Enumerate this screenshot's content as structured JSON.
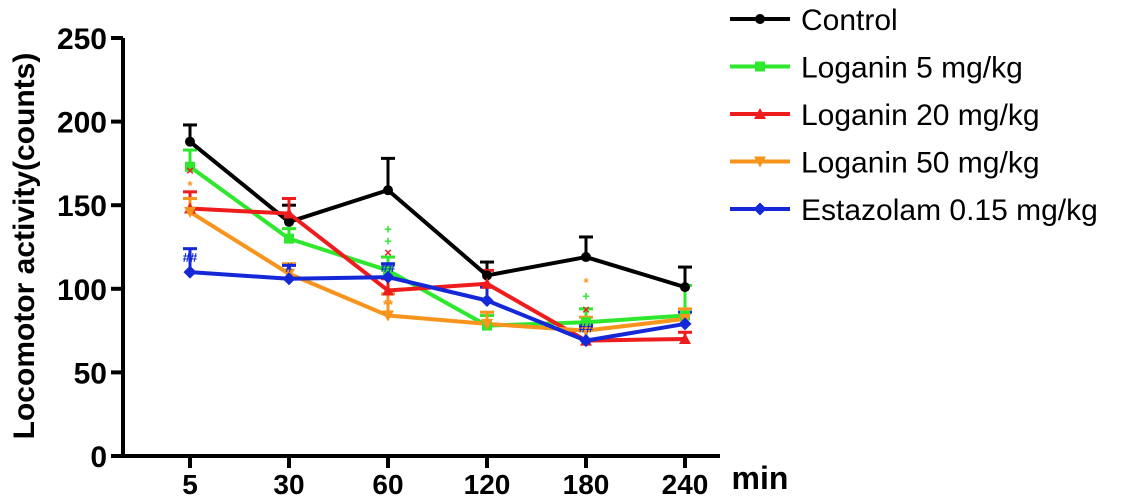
{
  "chart_data": {
    "type": "line",
    "title": "",
    "ylabel": "Locomotor activity(counts)",
    "xlabel": "min",
    "categories": [
      "5",
      "30",
      "60",
      "120",
      "180",
      "240"
    ],
    "yticks": [
      "0",
      "50",
      "100",
      "150",
      "200",
      "250"
    ],
    "ylim": [
      0,
      250
    ],
    "legend_position": "top-right",
    "series": [
      {
        "name": "Control",
        "color": "#000000",
        "marker": "circle",
        "values": [
          188,
          140,
          159,
          108,
          119,
          101
        ],
        "errors": [
          10,
          10,
          19,
          8,
          12,
          12
        ]
      },
      {
        "name": "Loganin 5 mg/kg",
        "color": "#2EE82E",
        "marker": "square",
        "values": [
          173,
          130,
          111,
          78,
          80,
          84
        ],
        "errors": [
          10,
          6,
          8,
          6,
          8,
          18
        ]
      },
      {
        "name": "Loganin 20 mg/kg",
        "color": "#EE1C1C",
        "marker": "triangle-up",
        "values": [
          148,
          145,
          99,
          103,
          69,
          70
        ],
        "errors": [
          10,
          9,
          7,
          8,
          8,
          4
        ]
      },
      {
        "name": "Loganin 50 mg/kg",
        "color": "#F7941D",
        "marker": "triangle-down",
        "values": [
          146,
          109,
          84,
          79,
          75,
          82
        ],
        "errors": [
          8,
          6,
          13,
          7,
          8,
          6
        ]
      },
      {
        "name": "Estazolam 0.15 mg/kg",
        "color": "#1428D8",
        "marker": "diamond",
        "values": [
          110,
          106,
          107,
          93,
          69,
          79
        ],
        "errors": [
          14,
          8,
          8,
          8,
          9,
          7
        ]
      }
    ],
    "annotations": [
      {
        "text": "×",
        "category": "5",
        "y": 171,
        "color": "#EE1C1C"
      },
      {
        "text": "*",
        "category": "5",
        "y": 162,
        "color": "#F7941D"
      },
      {
        "text": "##",
        "category": "5",
        "y": 119,
        "color": "#1428D8"
      },
      {
        "text": "#",
        "category": "30",
        "y": 113,
        "color": "#1428D8"
      },
      {
        "text": "+",
        "category": "60",
        "y": 136,
        "color": "#2EE82E"
      },
      {
        "text": "+",
        "category": "60",
        "y": 129,
        "color": "#2EE82E"
      },
      {
        "text": "×",
        "category": "60",
        "y": 122,
        "color": "#EE1C1C"
      },
      {
        "text": "##",
        "category": "60",
        "y": 113,
        "color": "#1428D8"
      },
      {
        "text": "**",
        "category": "60",
        "y": 91,
        "color": "#F7941D"
      },
      {
        "text": "*",
        "category": "180",
        "y": 104,
        "color": "#F7941D"
      },
      {
        "text": "+",
        "category": "180",
        "y": 96,
        "color": "#2EE82E"
      },
      {
        "text": "×",
        "category": "180",
        "y": 88,
        "color": "#EE1C1C"
      },
      {
        "text": "##",
        "category": "180",
        "y": 77,
        "color": "#1428D8"
      }
    ]
  }
}
